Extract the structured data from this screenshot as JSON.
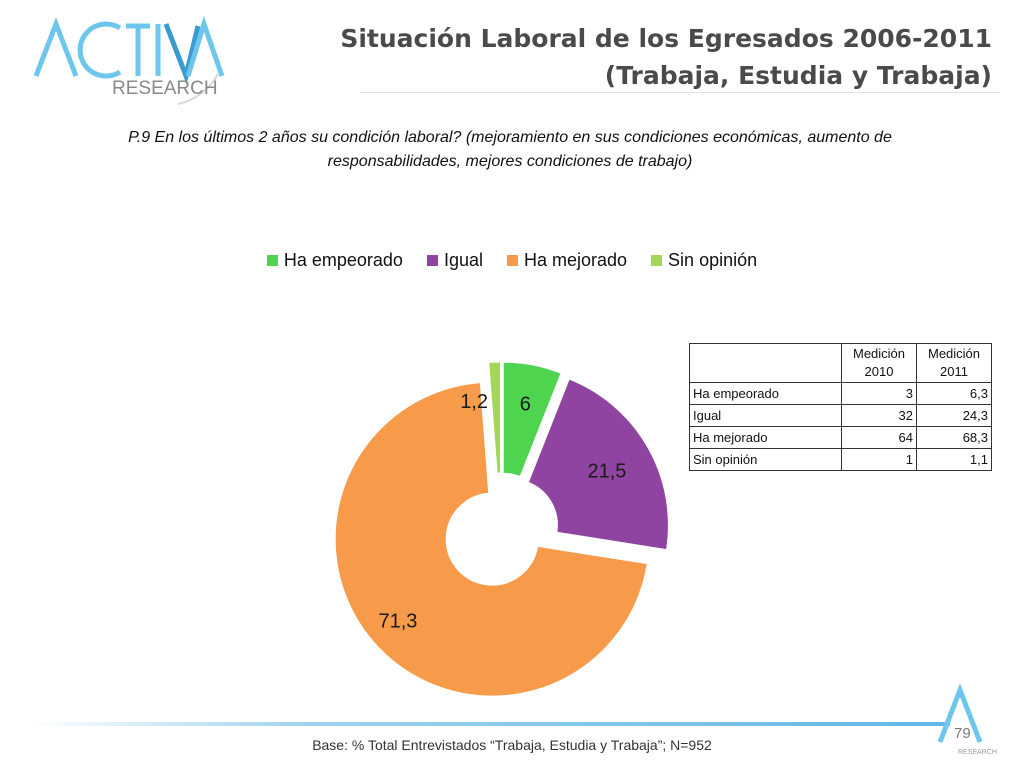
{
  "header": {
    "logo_text": "ACTIVA",
    "logo_sub": "RESEARCH",
    "title_line1": "Situación Laboral de los Egresados 2006-2011",
    "title_line2": "(Trabaja, Estudia y Trabaja)"
  },
  "question": {
    "text": "P.9  En los últimos 2 años su condición laboral? (mejoramiento en sus condiciones económicas, aumento de responsabilidades, mejores condiciones de trabajo)"
  },
  "chart_data": {
    "type": "pie",
    "subtype": "doughnut-exploded",
    "title": "",
    "categories": [
      "Ha empeorado",
      "Igual",
      "Ha mejorado",
      "Sin opinión"
    ],
    "values": [
      6,
      21.5,
      71.3,
      1.2
    ],
    "labels": [
      "6",
      "21,5",
      "71,3",
      "1,2"
    ],
    "colors": [
      "#4fd44f",
      "#8e44a0",
      "#f79a4a",
      "#a4d65a"
    ],
    "legend_position": "top"
  },
  "table": {
    "headers": [
      "",
      "Medición 2010",
      "Medición 2011"
    ],
    "rows": [
      {
        "label": "Ha empeorado",
        "v2010": "3",
        "v2011": "6,3"
      },
      {
        "label": "Igual",
        "v2010": "32",
        "v2011": "24,3"
      },
      {
        "label": "Ha mejorado",
        "v2010": "64",
        "v2011": "68,3"
      },
      {
        "label": "Sin opinión",
        "v2010": "1",
        "v2011": "1,1"
      }
    ]
  },
  "footer": {
    "base_text": "Base: % Total Entrevistados “Trabaja, Estudia y Trabaja”; N=952",
    "page_number": "79",
    "mini_logo_text": "RESEARCH"
  }
}
